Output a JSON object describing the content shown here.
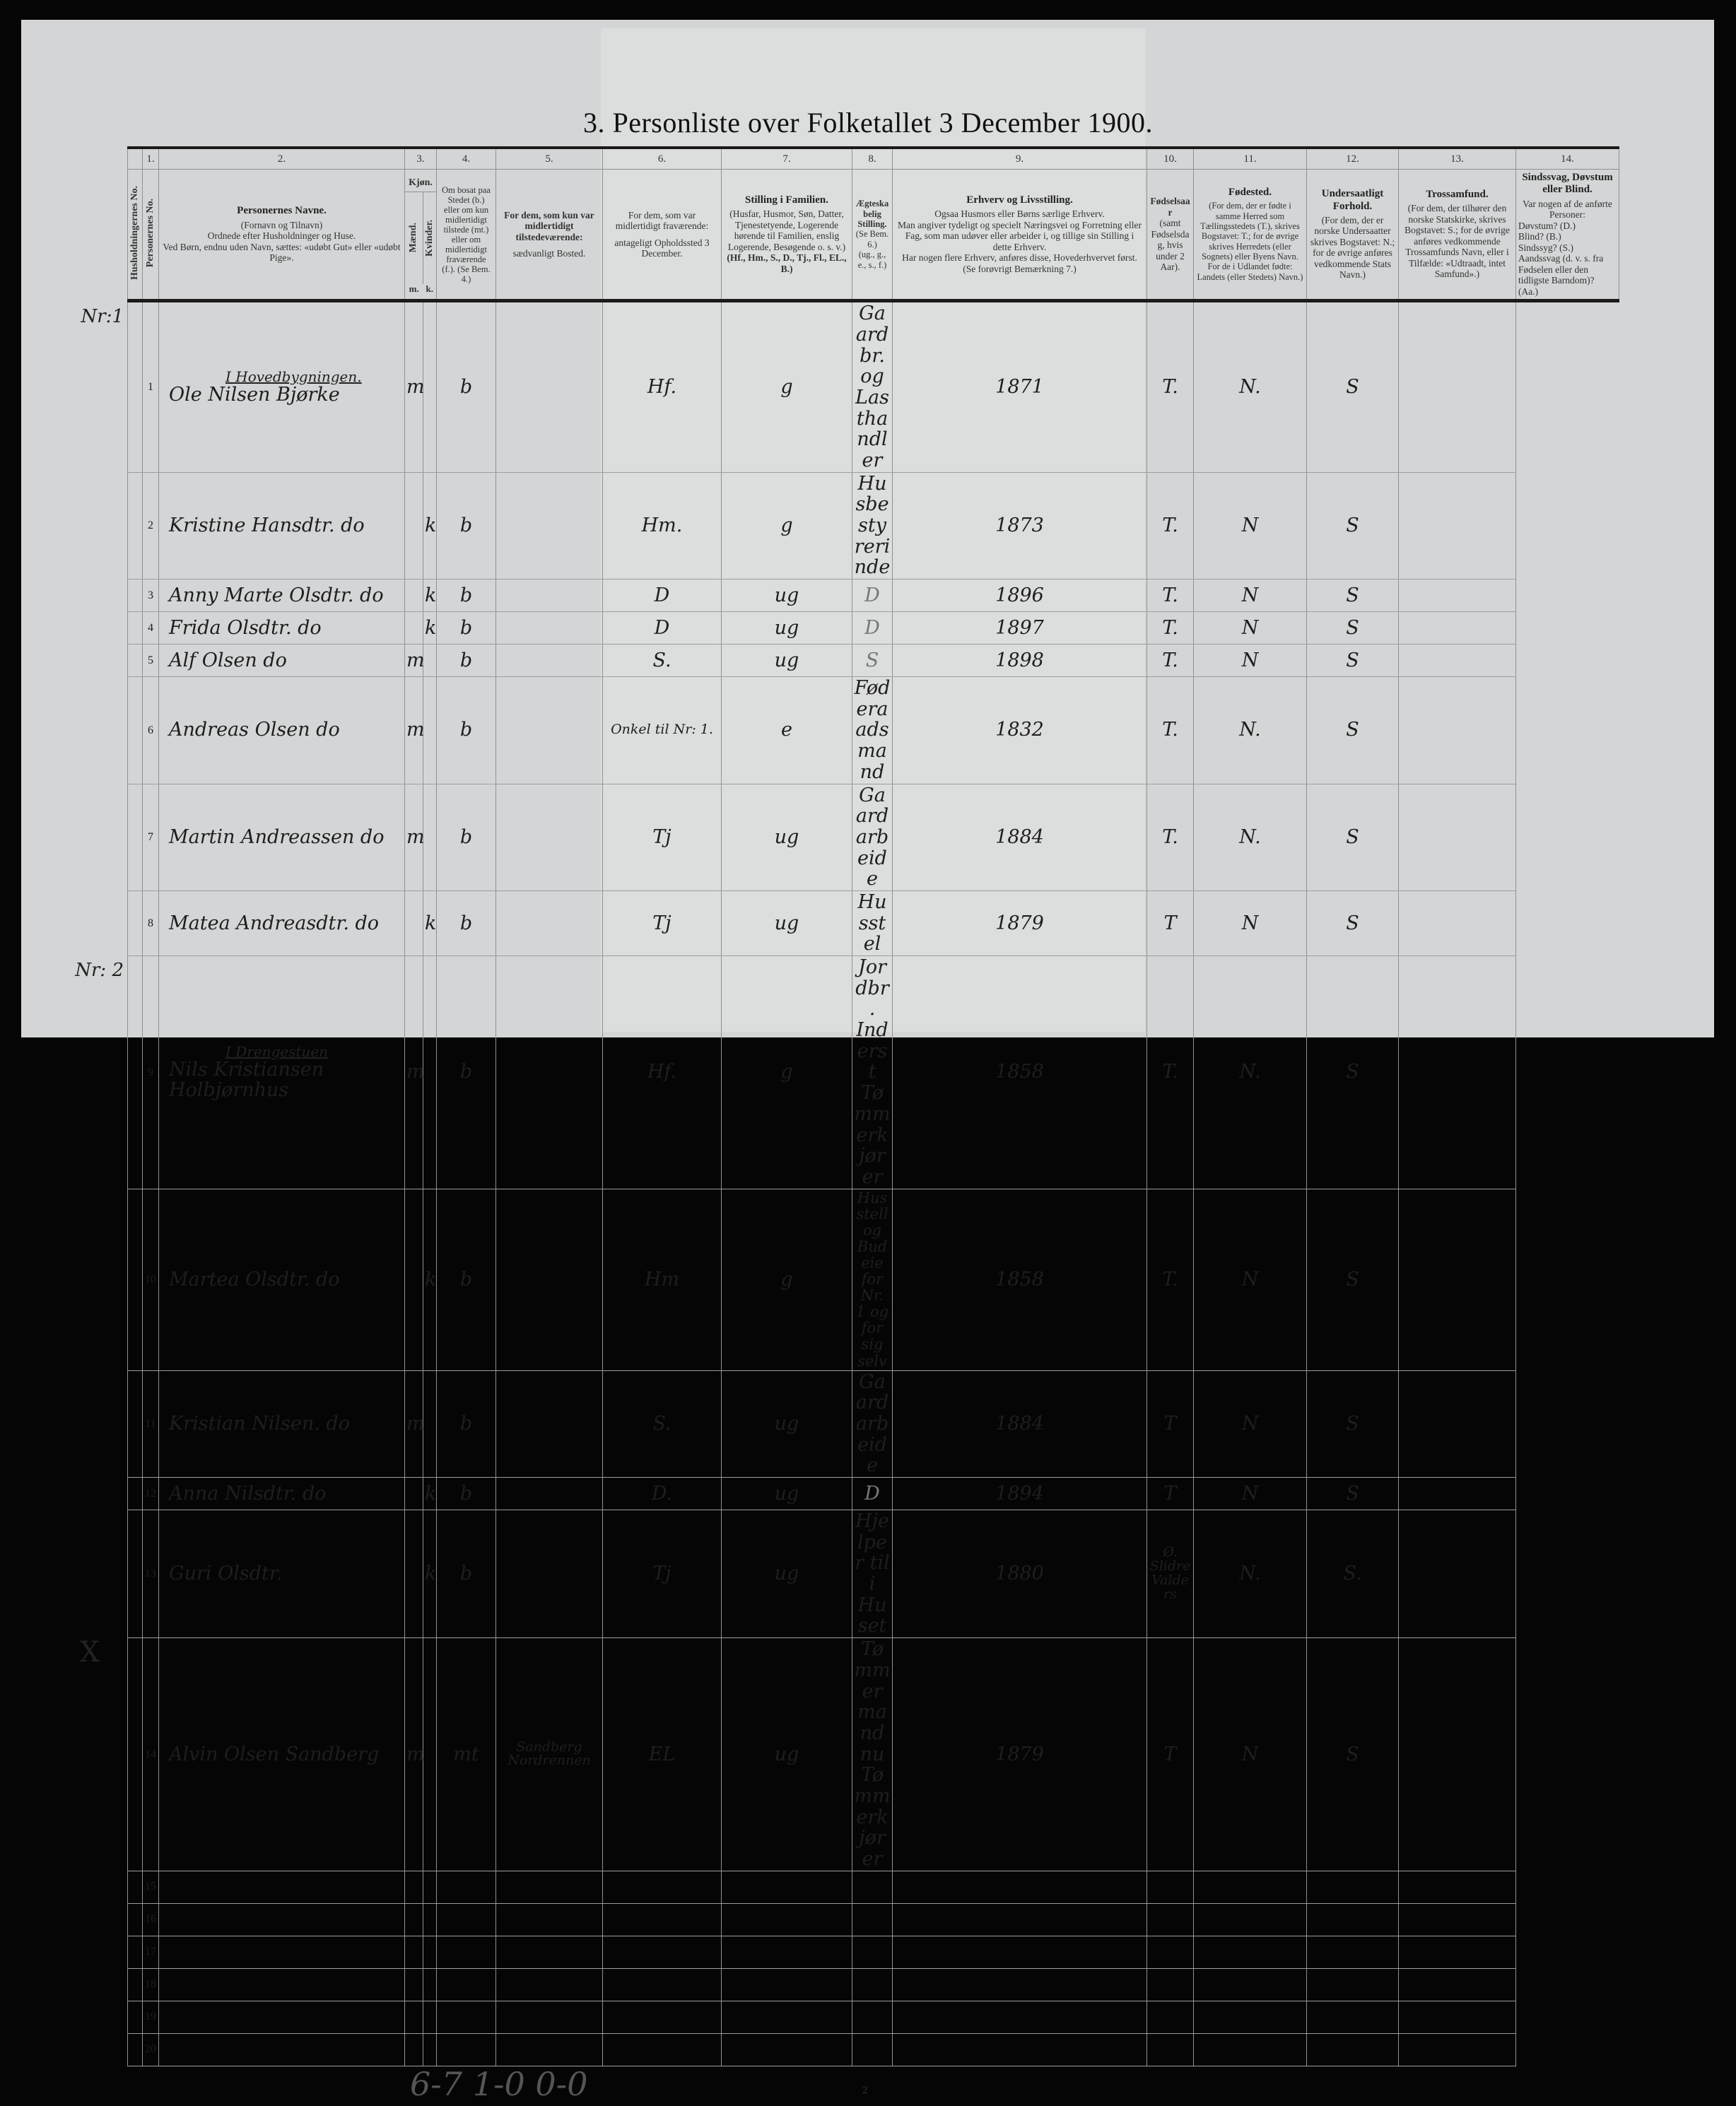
{
  "title": "3. Personliste over Folketallet 3 December 1900.",
  "columns": {
    "c1": {
      "num": "1.",
      "hh": "Husholdningernes No.",
      "pers": "Personernes No."
    },
    "c2": {
      "num": "2.",
      "title": "Personernes Navne.",
      "lines": [
        "(Fornavn og Tilnavn)",
        "Ordnede efter Husholdninger og Huse.",
        "Ved Børn, endnu uden Navn, sættes: «udøbt Gut» eller «udøbt Pige»."
      ]
    },
    "c3": {
      "num": "3.",
      "title": "Kjøn.",
      "men": "Mænd.",
      "women": "Kvinder.",
      "m": "m.",
      "k": "k."
    },
    "c4": {
      "num": "4.",
      "title": "Om bosat paa Stedet (b.) eller om kun midlertidigt tilstede (mt.) eller om midlertidigt fraværende (f.). (Se Bem. 4.)"
    },
    "c5": {
      "num": "5.",
      "title": "For dem, som kun var midlertidigt tilstedeværende:",
      "sub": "sædvanligt Bosted."
    },
    "c6": {
      "num": "6.",
      "title": "For dem, som var midlertidigt fraværende:",
      "sub": "antageligt Opholdssted 3 December."
    },
    "c7": {
      "num": "7.",
      "title": "Stilling i Familien.",
      "sub": "(Husfar, Husmor, Søn, Datter, Tjenestetyende, Logerende hørende til Familien, enslig Logerende, Besøgende o. s. v.)",
      "codes": "(Hf., Hm., S., D., Tj., Fl., EL., B.)"
    },
    "c8": {
      "num": "8.",
      "title": "Ægteskabelig Stilling.",
      "sub": "(Se Bem. 6.)",
      "codes": "(ug., g., e., s., f.)"
    },
    "c9": {
      "num": "9.",
      "title": "Erhverv og Livsstilling.",
      "lines": [
        "Ogsaa Husmors eller Børns særlige Erhverv.",
        "Man angiver tydeligt og specielt Næringsvei og Forretning eller Fag, som man udøver eller arbeider i, og tillige sin Stilling i dette Erhverv.",
        "Har nogen flere Erhverv, anføres disse, Hovederhvervet først.",
        "(Se forøvrigt Bemærkning 7.)"
      ]
    },
    "c10": {
      "num": "10.",
      "title": "Fødselsaar",
      "sub": "(samt Fødselsdag, hvis under 2 Aar)."
    },
    "c11": {
      "num": "11.",
      "title": "Fødested.",
      "sub": "(For dem, der er fødte i samme Herred som Tællingsstedets (T.), skrives Bogstavet: T.; for de øvrige skrives Herredets (eller Sognets) eller Byens Navn. For de i Udlandet fødte: Landets (eller Stedets) Navn.)"
    },
    "c12": {
      "num": "12.",
      "title": "Undersaatligt Forhold.",
      "sub": "(For dem, der er norske Undersaatter skrives Bogstavet: N.; for de øvrige anføres vedkommende Stats Navn.)"
    },
    "c13": {
      "num": "13.",
      "title": "Trossamfund.",
      "sub": "(For dem, der tilhører den norske Statskirke, skrives Bogstavet: S.; for de øvrige anføres vedkommende Trossamfunds Navn, eller i Tilfælde: «Udtraadt, intet Samfund».)"
    },
    "c14": {
      "num": "14.",
      "title": "Sindssvag, Døvstum eller Blind.",
      "lines": [
        "Var nogen af de anførte Personer:",
        "Døvstum? (D.)",
        "Blind? (B.)",
        "Sindssyg? (S.)",
        "Aandssvag (d. v. s. fra Fødselen eller den tidligste Barndom)? (Aa.)"
      ]
    }
  },
  "rows": [
    {
      "n": "1",
      "hh": "Nr:1",
      "note": "I Hovedbygningen.",
      "name": "Ole Nilsen Bjørke",
      "m": "m",
      "k": "",
      "bosat": "b",
      "tilstede": "",
      "stilling": "Hf.",
      "egt": "g",
      "erhverv": "Gaardbr. og Lasthandler",
      "aar": "1871",
      "fodested": "T.",
      "undersaat": "N.",
      "tro": "S"
    },
    {
      "n": "2",
      "name": "Kristine Hansdtr. do",
      "m": "",
      "k": "k",
      "bosat": "b",
      "stilling": "Hm.",
      "egt": "g",
      "erhverv": "Husbestyrerinde",
      "aar": "1873",
      "fodested": "T.",
      "undersaat": "N",
      "tro": "S"
    },
    {
      "n": "3",
      "name": "Anny Marte Olsdtr. do",
      "m": "",
      "k": "k",
      "bosat": "b",
      "stilling": "D",
      "egt": "ug",
      "erhverv": "D",
      "aar": "1896",
      "fodested": "T.",
      "undersaat": "N",
      "tro": "S"
    },
    {
      "n": "4",
      "name": "Frida Olsdtr. do",
      "m": "",
      "k": "k",
      "bosat": "b",
      "stilling": "D",
      "egt": "ug",
      "erhverv": "D",
      "aar": "1897",
      "fodested": "T.",
      "undersaat": "N",
      "tro": "S"
    },
    {
      "n": "5",
      "name": "Alf Olsen do",
      "m": "m",
      "k": "",
      "bosat": "b",
      "stilling": "S.",
      "egt": "ug",
      "erhverv": "S",
      "aar": "1898",
      "fodested": "T.",
      "undersaat": "N",
      "tro": "S"
    },
    {
      "n": "6",
      "name": "Andreas Olsen do",
      "m": "m",
      "k": "",
      "bosat": "b",
      "stilling": "Onkel til Nr: 1.",
      "egt": "e",
      "erhverv": "Føderaadsmand",
      "aar": "1832",
      "fodested": "T.",
      "undersaat": "N.",
      "tro": "S"
    },
    {
      "n": "7",
      "name": "Martin Andreassen do",
      "m": "m",
      "k": "",
      "bosat": "b",
      "stilling": "Tj",
      "egt": "ug",
      "erhverv": "Gaardarbeide",
      "aar": "1884",
      "fodested": "T.",
      "undersaat": "N.",
      "tro": "S"
    },
    {
      "n": "8",
      "name": "Matea Andreasdtr. do",
      "m": "",
      "k": "k",
      "bosat": "b",
      "stilling": "Tj",
      "egt": "ug",
      "erhverv": "Husstel",
      "aar": "1879",
      "fodested": "T",
      "undersaat": "N",
      "tro": "S"
    },
    {
      "n": "9",
      "hh": "Nr: 2",
      "note": "I Drengestuen",
      "name": "Nils Kristiansen Holbjørnhus",
      "m": "m",
      "k": "",
      "bosat": "b",
      "stilling": "Hf.",
      "egt": "g",
      "erhverv": "Jordbr. Inderst Tømmerkjører",
      "aar": "1858",
      "fodested": "T.",
      "undersaat": "N.",
      "tro": "S"
    },
    {
      "n": "10",
      "name": "Martea Olsdtr. do",
      "m": "",
      "k": "k",
      "bosat": "b",
      "stilling": "Hm",
      "egt": "g",
      "erhverv": "Husstell og Budeie for Nr. 1 og for sig selv",
      "aar": "1858",
      "fodested": "T.",
      "undersaat": "N",
      "tro": "S"
    },
    {
      "n": "11",
      "name": "Kristian Nilsen. do",
      "m": "m",
      "k": "",
      "bosat": "b",
      "stilling": "S.",
      "egt": "ug",
      "erhverv": "Gaardarbeide",
      "aar": "1884",
      "fodested": "T",
      "undersaat": "N",
      "tro": "S"
    },
    {
      "n": "12",
      "name": "Anna Nilsdtr. do",
      "m": "",
      "k": "k",
      "bosat": "b",
      "stilling": "D.",
      "egt": "ug",
      "erhverv": "D",
      "aar": "1894",
      "fodested": "T",
      "undersaat": "N",
      "tro": "S"
    },
    {
      "n": "13",
      "name": "Guri Olsdtr.",
      "m": "",
      "k": "k",
      "bosat": "b",
      "stilling": "Tj",
      "egt": "ug",
      "erhverv": "Hjelper til i Huset",
      "aar": "1880",
      "fodested": "Ø. Slidre Valders",
      "undersaat": "N.",
      "tro": "S."
    },
    {
      "n": "14",
      "mark": "X",
      "name": "Alvin Olsen Sandberg",
      "m": "m",
      "k": "",
      "bosat": "mt",
      "tilstede": "Sandberg Nordrennen",
      "stilling": "EL",
      "egt": "ug",
      "erhverv": "Tømmermand nu Tømmerkjører",
      "aar": "1879",
      "fodested": "T",
      "undersaat": "N",
      "tro": "S"
    },
    {
      "n": "15"
    },
    {
      "n": "16"
    },
    {
      "n": "17"
    },
    {
      "n": "18"
    },
    {
      "n": "19"
    },
    {
      "n": "20"
    }
  ],
  "footer": {
    "tally": "6-7 1-0 0-0",
    "page_number": "2"
  }
}
